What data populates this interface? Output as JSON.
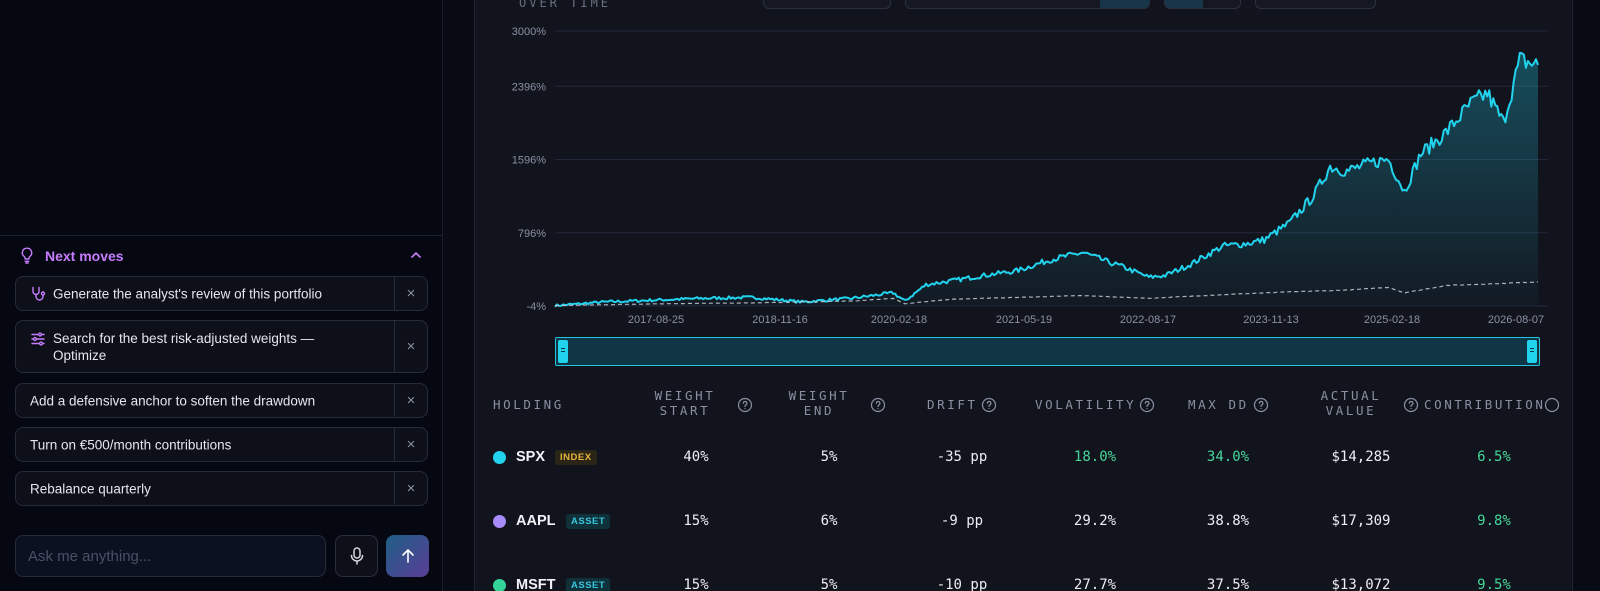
{
  "next_moves": {
    "title": "Next moves",
    "items": [
      {
        "label": "Generate the analyst's review of this portfolio",
        "icon": "stethoscope-icon"
      },
      {
        "label": "Search for the best risk-adjusted weights —",
        "label_line2": "Optimize",
        "icon": "sliders-icon"
      },
      {
        "label": "Add a defensive anchor to soften the drawdown",
        "icon": ""
      },
      {
        "label": "Turn on €500/month contributions",
        "icon": ""
      },
      {
        "label": "Rebalance quarterly",
        "icon": ""
      }
    ],
    "close_glyph": "×"
  },
  "chat": {
    "placeholder": "Ask me anything..."
  },
  "card": {
    "caption": "OVER TIME"
  },
  "colors": {
    "accent_cyan": "#22d3ee",
    "accent_purple": "#c77dff",
    "positive": "#45d69a",
    "badge_index": "#e5b43a"
  },
  "chart_data": {
    "type": "line",
    "title": "",
    "xlabel": "",
    "ylabel": "",
    "y_tick_labels": [
      "3000%",
      "2396%",
      "1596%",
      "796%",
      "-4%"
    ],
    "y_ticks": [
      3000,
      2396,
      1596,
      796,
      -4
    ],
    "ylim": [
      -4,
      3000
    ],
    "x_tick_labels": [
      "2017-08-25",
      "2018-11-16",
      "2020-02-18",
      "2021-05-19",
      "2022-08-17",
      "2023-11-13",
      "2025-02-18",
      "2026-08-07"
    ],
    "xlim": [
      "2016-09-01",
      "2026-08-07"
    ],
    "grid": true,
    "series": [
      {
        "style": "solid-area",
        "color": "#22d3ee",
        "x": [
          "2016-09-01",
          "2017-03-01",
          "2017-09-01",
          "2018-03-01",
          "2018-09-01",
          "2019-03-01",
          "2019-09-01",
          "2020-02-01",
          "2020-03-15",
          "2020-06-01",
          "2020-09-01",
          "2021-01-01",
          "2021-05-01",
          "2021-09-01",
          "2022-01-01",
          "2022-04-01",
          "2022-06-01",
          "2022-09-01",
          "2022-11-01",
          "2023-02-01",
          "2023-06-01",
          "2023-09-01",
          "2023-11-01",
          "2024-02-01",
          "2024-05-01",
          "2024-07-01",
          "2024-09-01",
          "2024-12-01",
          "2025-02-01",
          "2025-04-01",
          "2025-06-01",
          "2025-09-01",
          "2025-12-01",
          "2026-02-01",
          "2026-04-01",
          "2026-06-01",
          "2026-08-07"
        ],
        "y": [
          0,
          40,
          60,
          80,
          90,
          40,
          80,
          140,
          50,
          230,
          270,
          330,
          380,
          500,
          580,
          480,
          420,
          310,
          330,
          450,
          650,
          680,
          720,
          900,
          1200,
          1520,
          1470,
          1560,
          1600,
          1250,
          1660,
          1890,
          2200,
          2320,
          2000,
          2680,
          2630
        ]
      },
      {
        "style": "dashed",
        "color": "#c8ccd6",
        "x": [
          "2016-09-01",
          "2017-09-01",
          "2018-09-01",
          "2019-09-01",
          "2020-02-01",
          "2020-03-15",
          "2020-09-01",
          "2021-09-01",
          "2022-01-01",
          "2022-09-01",
          "2023-06-01",
          "2024-02-01",
          "2024-09-01",
          "2025-02-01",
          "2025-04-01",
          "2025-09-01",
          "2026-03-01",
          "2026-08-07"
        ],
        "y": [
          0,
          20,
          30,
          50,
          80,
          20,
          70,
          100,
          110,
          80,
          120,
          150,
          170,
          200,
          140,
          220,
          240,
          260
        ]
      }
    ]
  },
  "table": {
    "headers": {
      "holding": "HOLDING",
      "weight_start_1": "WEIGHT",
      "weight_start_2": "START",
      "weight_end_1": "WEIGHT",
      "weight_end_2": "END",
      "drift": "DRIFT",
      "volatility": "VOLATILITY",
      "max_dd": "MAX DD",
      "actual_value_1": "ACTUAL",
      "actual_value_2": "VALUE",
      "contribution": "CONTRIBUTION"
    },
    "rows": [
      {
        "ticker": "SPX",
        "badge": "INDEX",
        "dot": "#22d3ee",
        "weight_start": "40%",
        "weight_end": "5%",
        "drift": "-35 pp",
        "volatility": "18.0%",
        "max_dd": "34.0%",
        "actual_value": "$14,285",
        "contribution": "6.5%"
      },
      {
        "ticker": "AAPL",
        "badge": "ASSET",
        "dot": "#a78bfa",
        "weight_start": "15%",
        "weight_end": "6%",
        "drift": "-9 pp",
        "volatility": "29.2%",
        "max_dd": "38.8%",
        "actual_value": "$17,309",
        "contribution": "9.8%"
      },
      {
        "ticker": "MSFT",
        "badge": "ASSET",
        "dot": "#34d399",
        "weight_start": "15%",
        "weight_end": "5%",
        "drift": "-10 pp",
        "volatility": "27.7%",
        "max_dd": "37.5%",
        "actual_value": "$13,072",
        "contribution": "9.5%"
      }
    ]
  }
}
